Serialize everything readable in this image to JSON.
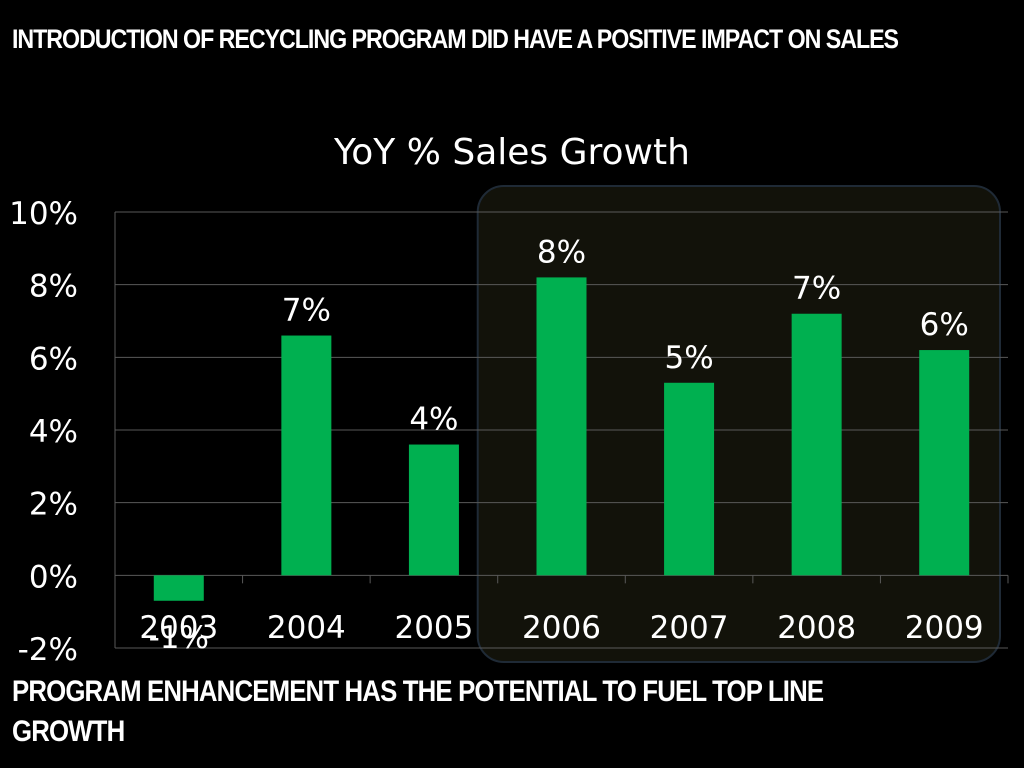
{
  "slide": {
    "headline": "INTRODUCTION OF RECYCLING PROGRAM DID HAVE A POSITIVE IMPACT ON SALES",
    "footer": "PROGRAM ENHANCEMENT HAS THE POTENTIAL TO FUEL TOP LINE GROWTH"
  },
  "colors": {
    "background": "#000000",
    "bar": "#00b050",
    "text": "#ffffff",
    "gridline": "#595959",
    "highlight_fill": "#12120a",
    "highlight_border": "#1f2a36"
  },
  "chart_data": {
    "type": "bar",
    "title": "YoY % Sales Growth",
    "categories": [
      "2003",
      "2004",
      "2005",
      "2006",
      "2007",
      "2008",
      "2009"
    ],
    "values": [
      -0.7,
      6.6,
      3.6,
      8.2,
      5.3,
      7.2,
      6.2
    ],
    "data_labels": [
      "-1%",
      "7%",
      "4%",
      "8%",
      "5%",
      "7%",
      "6%"
    ],
    "y_ticks": [
      "-2%",
      "0%",
      "2%",
      "4%",
      "6%",
      "8%",
      "10%"
    ],
    "ylim": [
      -2,
      10
    ],
    "ytick_step": 2,
    "grid": true,
    "legend": "none",
    "highlighted_categories": [
      "2006",
      "2007",
      "2008",
      "2009"
    ]
  }
}
